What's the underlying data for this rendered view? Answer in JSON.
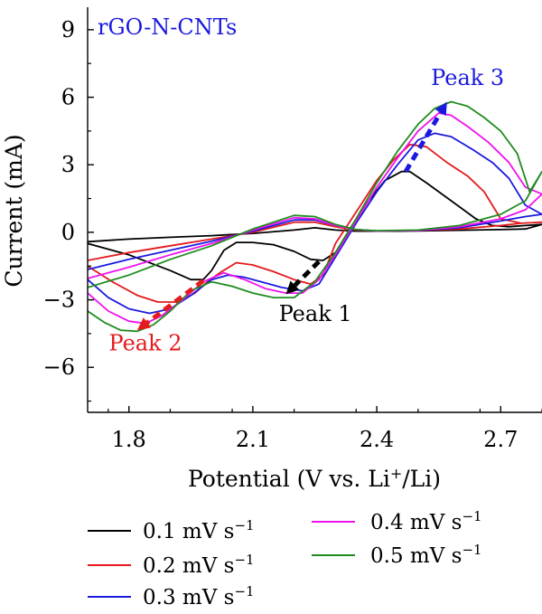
{
  "chart_data": {
    "type": "line",
    "title": "rGO-N-CNTs",
    "title_color": "#1a1adf",
    "xlabel": "Potential (V vs. Li",
    "xlabel_sup": "+",
    "xlabel_tail": "/Li)",
    "ylabel": "Current (mA)",
    "xlim": [
      1.7,
      2.8
    ],
    "ylim": [
      -8,
      10
    ],
    "xticks": [
      1.8,
      2.1,
      2.4,
      2.7
    ],
    "xtick_labels": [
      "1.8",
      "2.1",
      "2.4",
      "2.7"
    ],
    "yticks": [
      9,
      6,
      3,
      0,
      -3,
      -6
    ],
    "ytick_labels": [
      "9",
      "6",
      "3",
      "0",
      "−3",
      "−6"
    ],
    "grid": false,
    "legend_position": "bottom",
    "series": [
      {
        "name": "0.1 mV s",
        "name_sup": "−1",
        "color": "#000000",
        "x": [
          1.7,
          1.8,
          1.9,
          1.95,
          1.98,
          2.0,
          2.03,
          2.06,
          2.1,
          2.15,
          2.2,
          2.24,
          2.27,
          2.3,
          2.34,
          2.38,
          2.42,
          2.46,
          2.48,
          2.52,
          2.58,
          2.64,
          2.68,
          2.72,
          2.76,
          2.8,
          2.76,
          2.7,
          2.6,
          2.5,
          2.45,
          2.4,
          2.35,
          2.3,
          2.25,
          2.2,
          2.1,
          2.0,
          1.9,
          1.8,
          1.7
        ],
        "y": [
          -0.5,
          -1.0,
          -1.7,
          -2.1,
          -2.1,
          -1.7,
          -0.8,
          -0.45,
          -0.45,
          -0.55,
          -0.85,
          -1.2,
          -1.25,
          -0.9,
          0.3,
          1.4,
          2.3,
          2.7,
          2.7,
          2.2,
          1.4,
          0.6,
          0.3,
          0.25,
          0.3,
          0.35,
          0.15,
          0.12,
          0.09,
          0.06,
          0.05,
          0.05,
          0.05,
          0.1,
          0.2,
          0.1,
          -0.05,
          -0.15,
          -0.22,
          -0.3,
          -0.42
        ]
      },
      {
        "name": "0.2 mV s",
        "name_sup": "−1",
        "color": "#e41a1c",
        "x": [
          1.7,
          1.76,
          1.82,
          1.87,
          1.92,
          1.96,
          1.99,
          2.02,
          2.06,
          2.1,
          2.15,
          2.2,
          2.24,
          2.27,
          2.3,
          2.35,
          2.4,
          2.44,
          2.48,
          2.52,
          2.57,
          2.62,
          2.66,
          2.7,
          2.75,
          2.8,
          2.75,
          2.7,
          2.6,
          2.5,
          2.4,
          2.35,
          2.3,
          2.25,
          2.2,
          2.1,
          2.0,
          1.9,
          1.8,
          1.7
        ],
        "y": [
          -1.5,
          -2.2,
          -2.8,
          -3.1,
          -3.1,
          -2.7,
          -2.2,
          -1.8,
          -1.35,
          -1.45,
          -1.75,
          -2.1,
          -2.3,
          -1.9,
          -0.5,
          0.9,
          2.3,
          3.2,
          3.9,
          3.8,
          3.1,
          2.5,
          1.8,
          0.6,
          0.4,
          0.45,
          0.4,
          0.3,
          0.15,
          0.08,
          0.06,
          0.1,
          0.25,
          0.45,
          0.45,
          0.0,
          -0.3,
          -0.6,
          -0.9,
          -1.25
        ]
      },
      {
        "name": "0.3 mV s",
        "name_sup": "−1",
        "color": "#1a1adf",
        "x": [
          1.7,
          1.75,
          1.8,
          1.85,
          1.9,
          1.95,
          2.0,
          2.04,
          2.08,
          2.12,
          2.17,
          2.22,
          2.26,
          2.3,
          2.35,
          2.4,
          2.45,
          2.5,
          2.54,
          2.58,
          2.63,
          2.68,
          2.72,
          2.76,
          2.8,
          2.76,
          2.7,
          2.6,
          2.5,
          2.4,
          2.35,
          2.3,
          2.25,
          2.2,
          2.1,
          2.0,
          1.9,
          1.8,
          1.7
        ],
        "y": [
          -2.1,
          -2.9,
          -3.4,
          -3.6,
          -3.4,
          -2.8,
          -2.1,
          -1.9,
          -2.0,
          -2.2,
          -2.45,
          -2.6,
          -2.3,
          -1.1,
          0.4,
          1.8,
          3.0,
          4.1,
          4.4,
          4.25,
          3.7,
          3.1,
          2.4,
          1.2,
          0.8,
          0.7,
          0.5,
          0.2,
          0.08,
          0.06,
          0.12,
          0.3,
          0.55,
          0.55,
          0.05,
          -0.4,
          -0.8,
          -1.2,
          -1.65
        ]
      },
      {
        "name": "0.4 mV s",
        "name_sup": "−1",
        "color": "#ee12ee",
        "x": [
          1.7,
          1.75,
          1.8,
          1.84,
          1.88,
          1.93,
          1.98,
          2.03,
          2.08,
          2.13,
          2.18,
          2.22,
          2.26,
          2.3,
          2.35,
          2.4,
          2.45,
          2.5,
          2.55,
          2.58,
          2.62,
          2.67,
          2.72,
          2.76,
          2.8,
          2.76,
          2.7,
          2.6,
          2.5,
          2.4,
          2.35,
          2.3,
          2.25,
          2.2,
          2.1,
          2.0,
          1.9,
          1.8,
          1.7
        ],
        "y": [
          -2.7,
          -3.5,
          -3.95,
          -4.05,
          -3.7,
          -3.0,
          -2.2,
          -1.8,
          -2.1,
          -2.5,
          -2.7,
          -2.7,
          -2.1,
          -1.0,
          0.5,
          2.0,
          3.3,
          4.5,
          5.3,
          5.2,
          4.7,
          4.0,
          3.1,
          2.0,
          1.7,
          1.0,
          0.6,
          0.25,
          0.08,
          0.06,
          0.12,
          0.3,
          0.6,
          0.65,
          0.1,
          -0.5,
          -1.0,
          -1.55,
          -2.05
        ]
      },
      {
        "name": "0.5 mV s",
        "name_sup": "−1",
        "color": "#1f8c1f",
        "x": [
          1.7,
          1.74,
          1.78,
          1.82,
          1.86,
          1.9,
          1.95,
          2.0,
          2.05,
          2.1,
          2.15,
          2.2,
          2.25,
          2.3,
          2.35,
          2.4,
          2.45,
          2.5,
          2.54,
          2.58,
          2.62,
          2.66,
          2.7,
          2.74,
          2.77,
          2.8,
          2.76,
          2.7,
          2.6,
          2.5,
          2.4,
          2.35,
          2.3,
          2.25,
          2.2,
          2.1,
          2.0,
          1.9,
          1.8,
          1.7
        ],
        "y": [
          -3.5,
          -4.0,
          -4.35,
          -4.4,
          -4.1,
          -3.5,
          -2.6,
          -2.2,
          -2.4,
          -2.7,
          -2.9,
          -2.9,
          -2.2,
          -0.9,
          0.6,
          2.2,
          3.6,
          4.8,
          5.5,
          5.8,
          5.6,
          5.1,
          4.5,
          3.5,
          1.8,
          2.7,
          1.4,
          0.8,
          0.3,
          0.1,
          0.07,
          0.12,
          0.35,
          0.7,
          0.75,
          0.15,
          -0.6,
          -1.2,
          -1.9,
          -2.45
        ]
      }
    ],
    "annotations": [
      {
        "text": "Peak 1",
        "color": "#000000",
        "x": 2.34,
        "y": -3.95,
        "anchor": "end",
        "arrow": {
          "from": [
            2.26,
            -1.3
          ],
          "to": [
            2.18,
            -2.75
          ]
        }
      },
      {
        "text": "Peak 2",
        "color": "#e41a1c",
        "x": 1.84,
        "y": -5.25,
        "anchor": "middle",
        "arrow": {
          "from": [
            1.98,
            -2.15
          ],
          "to": [
            1.82,
            -4.35
          ]
        }
      },
      {
        "text": "Peak 3",
        "color": "#1a1adf",
        "x": 2.62,
        "y": 6.55,
        "anchor": "middle",
        "arrow": {
          "from": [
            2.47,
            2.7
          ],
          "to": [
            2.57,
            5.8
          ]
        }
      }
    ]
  }
}
